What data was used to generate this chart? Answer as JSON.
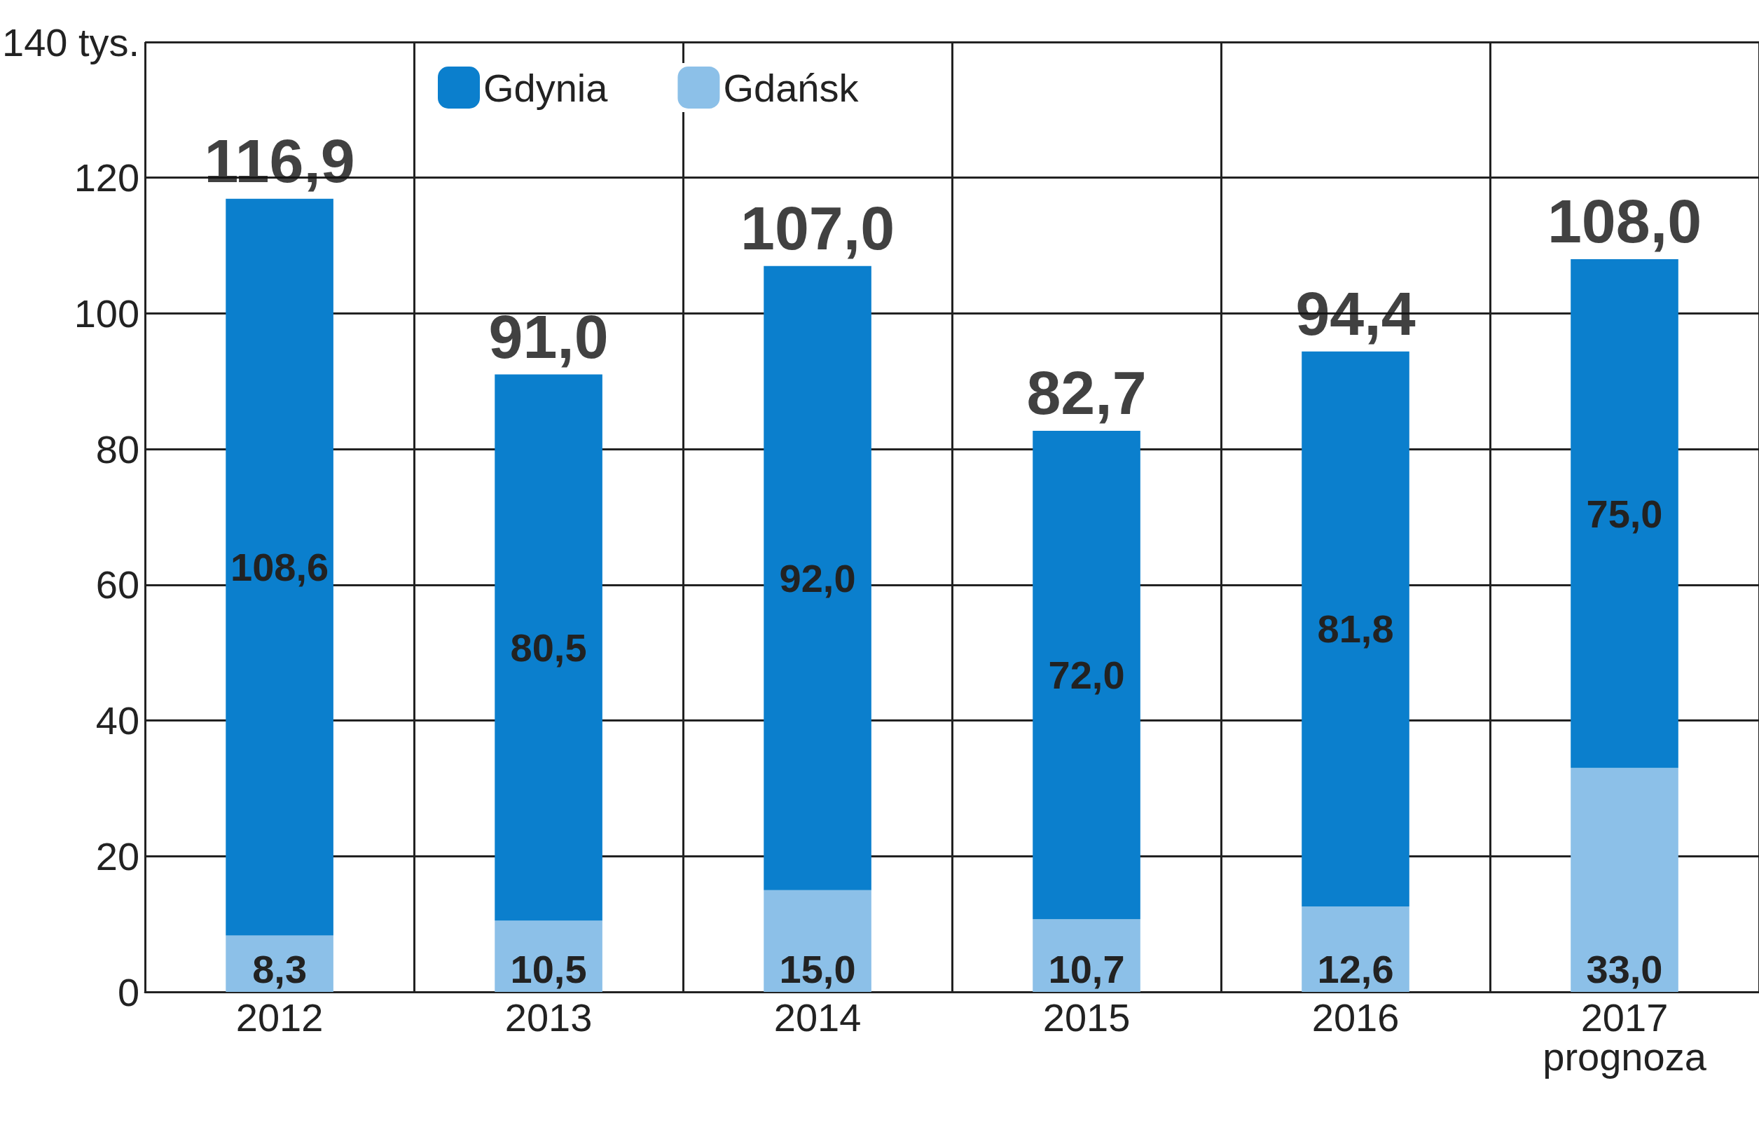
{
  "chart_data": {
    "type": "bar",
    "stacked": true,
    "categories": [
      "2012",
      "2013",
      "2014",
      "2015",
      "2016",
      "2017\nprognoza"
    ],
    "series": [
      {
        "name": "Gdańsk",
        "color": "#8cc0e8",
        "values": [
          8.3,
          10.5,
          15.0,
          10.7,
          12.6,
          33.0
        ],
        "value_labels": [
          "8,3",
          "10,5",
          "15,0",
          "10,7",
          "12,6",
          "33,0"
        ]
      },
      {
        "name": "Gdynia",
        "color": "#0b7fcd",
        "values": [
          108.6,
          80.5,
          92.0,
          72.0,
          81.8,
          75.0
        ],
        "value_labels": [
          "108,6",
          "80,5",
          "92,0",
          "72,0",
          "81,8",
          "75,0"
        ]
      }
    ],
    "totals": [
      "116,9",
      "91,0",
      "107,0",
      "82,7",
      "94,4",
      "108,0"
    ],
    "ylim": [
      0,
      140
    ],
    "yticks": [
      0,
      20,
      40,
      60,
      80,
      100,
      120,
      {
        "value": 140,
        "label": "140 tys."
      }
    ],
    "grid": true,
    "legend": "top left"
  }
}
